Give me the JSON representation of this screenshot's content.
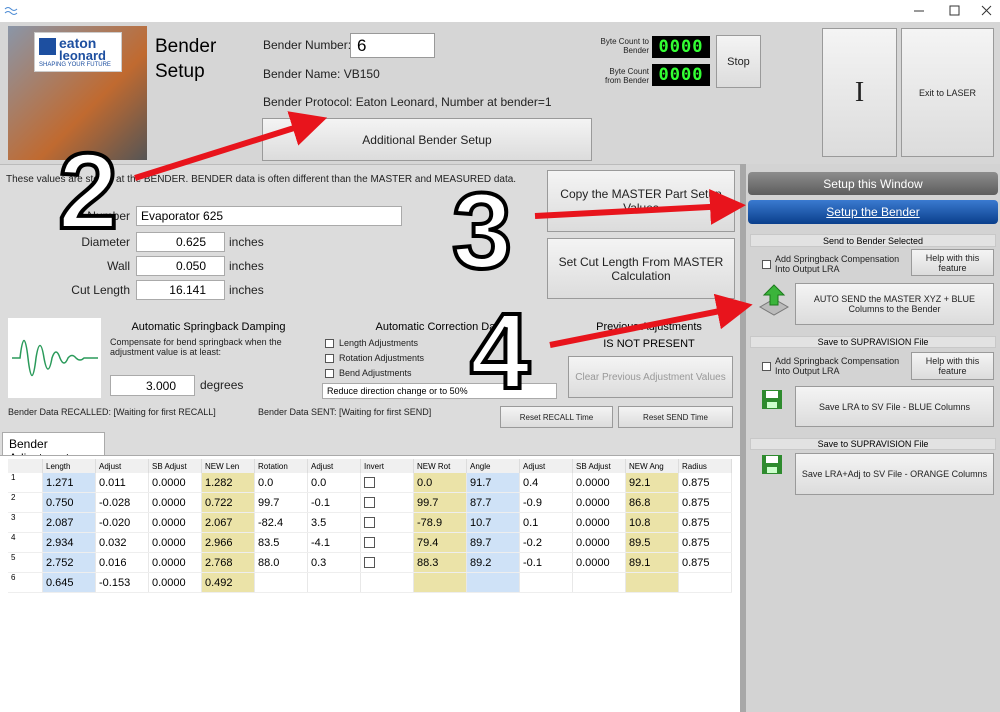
{
  "logo": {
    "line1": "eaton",
    "line2": "leonard",
    "tagline": "SHAPING YOUR FUTURE"
  },
  "header": {
    "title": "Bender Setup",
    "bender_number_label": "Bender Number:",
    "bender_number": "6",
    "bender_name": "Bender Name: VB150",
    "protocol": "Bender Protocol: Eaton Leonard, Number at bender=1",
    "additional_button": "Additional Bender Setup",
    "byte_to_label": "Byte Count to Bender",
    "byte_to_value": "0000",
    "byte_from_label": "Byte Count from Bender",
    "byte_from_value": "0000",
    "stop_button": "Stop",
    "cursor_button": "I",
    "exit_button": "Exit to LASER"
  },
  "left": {
    "note": "These values are stored at the BENDER.  BENDER data is often different than the MASTER and MEASURED data.",
    "fields": [
      {
        "label": "Part Number",
        "value": "Evaporator 625"
      },
      {
        "label": "Diameter",
        "value": "0.625",
        "unit": "inches"
      },
      {
        "label": "Wall",
        "value": "0.050",
        "unit": "inches"
      },
      {
        "label": "Cut Length",
        "value": "16.141",
        "unit": "inches"
      }
    ],
    "copy_button": "Copy the MASTER Part Setup Values",
    "cut_button": "Set Cut Length From MASTER Calculation",
    "springback": {
      "title": "Automatic Springback Damping",
      "text": "Compensate for bend springback when the adjustment value is at least:",
      "value": "3.000",
      "unit": "degrees"
    },
    "correction": {
      "title": "Automatic Correction Data",
      "options": [
        "Length Adjustments",
        "Rotation Adjustments",
        "Bend Adjustments"
      ],
      "dropdown": "Reduce direction change or to 50%"
    },
    "previous": {
      "title": "Previous Adjustments",
      "status": "IS NOT PRESENT",
      "button": "Clear Previous Adjustment Values"
    },
    "recalled": "Bender Data RECALLED: [Waiting for first RECALL]",
    "sent": "Bender Data SENT: [Waiting for first SEND]",
    "reset_recall": "Reset RECALL Time",
    "reset_send": "Reset SEND Time"
  },
  "tab": "Bender Adjustment",
  "table": {
    "headers": [
      "Length",
      "Adjust",
      "SB Adjust",
      "NEW Len",
      "Rotation",
      "Adjust",
      "Invert",
      "NEW Rot",
      "Angle",
      "Adjust",
      "SB Adjust",
      "NEW Ang",
      "Radius"
    ],
    "rows": [
      {
        "n": "1",
        "cells": [
          "1.271",
          "0.011",
          "0.0000",
          "1.282",
          "0.0",
          "0.0",
          "0.0",
          "91.7",
          "0.4",
          "0.0000",
          "92.1",
          "0.875"
        ]
      },
      {
        "n": "2",
        "cells": [
          "0.750",
          "-0.028",
          "0.0000",
          "0.722",
          "99.7",
          "-0.1",
          "99.7",
          "87.7",
          "-0.9",
          "0.0000",
          "86.8",
          "0.875"
        ]
      },
      {
        "n": "3",
        "cells": [
          "2.087",
          "-0.020",
          "0.0000",
          "2.067",
          "-82.4",
          "3.5",
          "-78.9",
          "10.7",
          "0.1",
          "0.0000",
          "10.8",
          "0.875"
        ]
      },
      {
        "n": "4",
        "cells": [
          "2.934",
          "0.032",
          "0.0000",
          "2.966",
          "83.5",
          "-4.1",
          "79.4",
          "89.7",
          "-0.2",
          "0.0000",
          "89.5",
          "0.875"
        ]
      },
      {
        "n": "5",
        "cells": [
          "2.752",
          "0.016",
          "0.0000",
          "2.768",
          "88.0",
          "0.3",
          "88.3",
          "89.2",
          "-0.1",
          "0.0000",
          "89.1",
          "0.875"
        ]
      },
      {
        "n": "6",
        "cells": [
          "0.645",
          "-0.153",
          "0.0000",
          "0.492"
        ]
      }
    ]
  },
  "right": {
    "setup_window": "Setup this Window",
    "setup_bender": "Setup the Bender",
    "send_header": "Send to Bender Selected",
    "springback_check": "Add Springback Compensation Into Output LRA",
    "help": "Help with this feature",
    "auto_send": "AUTO SEND the MASTER XYZ + BLUE Columns to the Bender",
    "sv_header1": "Save to SUPRAVISION File",
    "springback_check2": "Add Springback Compensation Into Output LRA",
    "help2": "Help with this feature",
    "save_blue": "Save LRA to SV File - BLUE Columns",
    "sv_header2": "Save to SUPRAVISION File",
    "save_orange": "Save LRA+Adj to SV File - ORANGE Columns"
  },
  "annotations": [
    "2",
    "3",
    "4"
  ]
}
